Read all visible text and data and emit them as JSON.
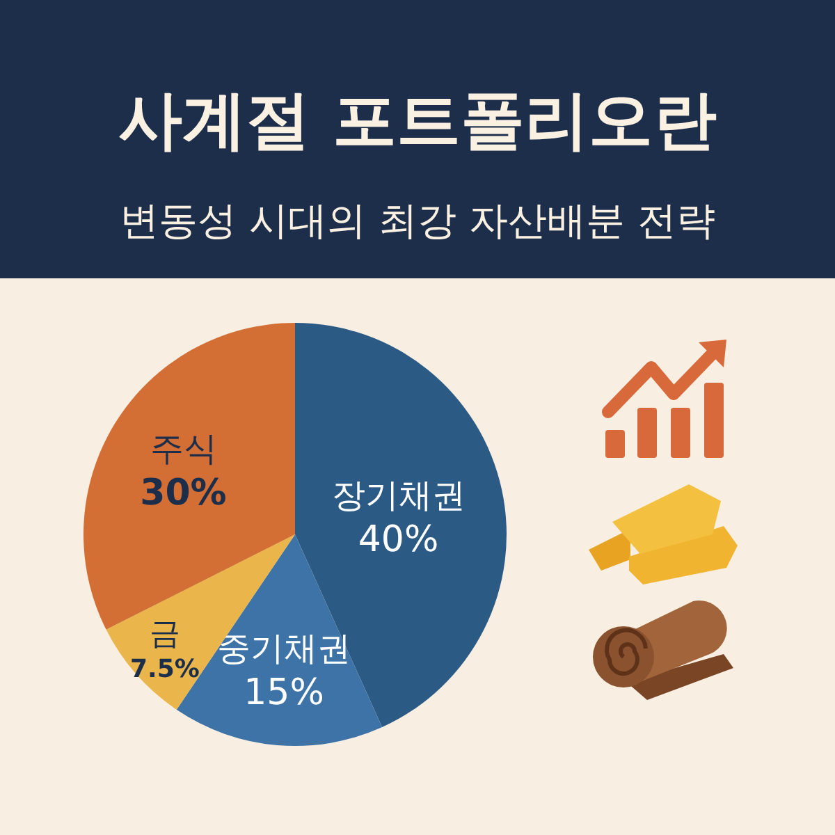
{
  "chart_data": {
    "type": "pie",
    "title": "사계절 포트폴리오란",
    "subtitle": "변동성 시대의 최강 자산배분 전략",
    "categories": [
      "장기채권",
      "중기채권",
      "금",
      "주식"
    ],
    "values": [
      40,
      15,
      7.5,
      30
    ],
    "value_labels": [
      "40%",
      "15%",
      "7.5%",
      "30%"
    ],
    "colors": [
      "#2b5a85",
      "#3e73a7",
      "#eab54a",
      "#d36f35"
    ]
  }
}
